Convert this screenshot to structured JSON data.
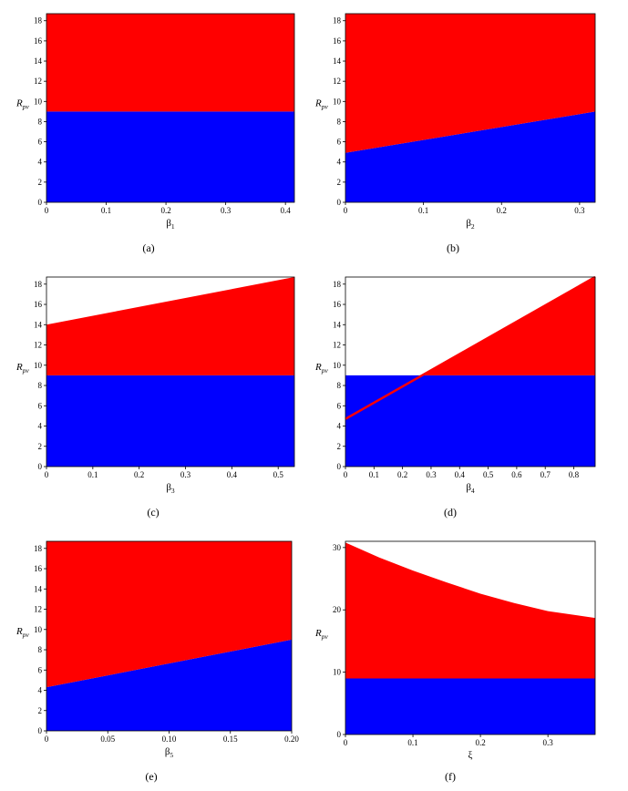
{
  "chart_data": [
    {
      "type": "area",
      "panel_label": "(a)",
      "xlabel": "β",
      "xlabel_sub": "1",
      "ylabel": "R",
      "ylabel_sub": "pv",
      "xlim": [
        0,
        0.415
      ],
      "ylim": [
        0,
        18.7
      ],
      "xticks": [
        0,
        0.1,
        0.2,
        0.3,
        0.4
      ],
      "xtick_labels": [
        "0",
        "0.1",
        "0.2",
        "0.3",
        "0.4"
      ],
      "yticks": [
        0,
        2,
        4,
        6,
        8,
        10,
        12,
        14,
        16,
        18
      ],
      "ytick_labels": [
        "0",
        "2",
        "4",
        "6",
        "8",
        "10",
        "12",
        "14",
        "16",
        "18"
      ],
      "red_top": [
        [
          0,
          18.7
        ],
        [
          0.415,
          18.7
        ]
      ],
      "blue_top": [
        [
          0,
          9.0
        ],
        [
          0.415,
          9.0
        ]
      ],
      "colors": {
        "upper": "#ff0000",
        "lower": "#0000ff"
      }
    },
    {
      "type": "area",
      "panel_label": "(b)",
      "xlabel": "β",
      "xlabel_sub": "2",
      "ylabel": "R",
      "ylabel_sub": "pv",
      "xlim": [
        0,
        0.32
      ],
      "ylim": [
        0,
        18.7
      ],
      "xticks": [
        0,
        0.1,
        0.2,
        0.3
      ],
      "xtick_labels": [
        "0",
        "0.1",
        "0.2",
        "0.3"
      ],
      "yticks": [
        0,
        2,
        4,
        6,
        8,
        10,
        12,
        14,
        16,
        18
      ],
      "ytick_labels": [
        "0",
        "2",
        "4",
        "6",
        "8",
        "10",
        "12",
        "14",
        "16",
        "18"
      ],
      "red_top": [
        [
          0,
          18.7
        ],
        [
          0.32,
          18.7
        ]
      ],
      "blue_top": [
        [
          0,
          4.9
        ],
        [
          0.32,
          9.0
        ]
      ],
      "colors": {
        "upper": "#ff0000",
        "lower": "#0000ff"
      }
    },
    {
      "type": "area",
      "panel_label": "(c)",
      "xlabel": "β",
      "xlabel_sub": "3",
      "ylabel": "R",
      "ylabel_sub": "pv",
      "xlim": [
        0,
        0.535
      ],
      "ylim": [
        0,
        18.7
      ],
      "xticks": [
        0,
        0.1,
        0.2,
        0.3,
        0.4,
        0.5
      ],
      "xtick_labels": [
        "0",
        "0.1",
        "0.2",
        "0.3",
        "0.4",
        "0.5"
      ],
      "yticks": [
        0,
        2,
        4,
        6,
        8,
        10,
        12,
        14,
        16,
        18
      ],
      "ytick_labels": [
        "0",
        "2",
        "4",
        "6",
        "8",
        "10",
        "12",
        "14",
        "16",
        "18"
      ],
      "red_top": [
        [
          0,
          14.0
        ],
        [
          0.535,
          18.7
        ]
      ],
      "blue_top": [
        [
          0,
          9.0
        ],
        [
          0.535,
          9.0
        ]
      ],
      "colors": {
        "upper": "#ff0000",
        "lower": "#0000ff"
      }
    },
    {
      "type": "area",
      "panel_label": "(d)",
      "xlabel": "β",
      "xlabel_sub": "4",
      "ylabel": "R",
      "ylabel_sub": "pv",
      "xlim": [
        0,
        0.875
      ],
      "ylim": [
        0,
        18.7
      ],
      "xticks": [
        0,
        0.1,
        0.2,
        0.3,
        0.4,
        0.5,
        0.6,
        0.7,
        0.8
      ],
      "xtick_labels": [
        "0",
        "0.1",
        "0.2",
        "0.3",
        "0.4",
        "0.5",
        "0.6",
        "0.7",
        "0.8"
      ],
      "yticks": [
        0,
        2,
        4,
        6,
        8,
        10,
        12,
        14,
        16,
        18
      ],
      "ytick_labels": [
        "0",
        "2",
        "4",
        "6",
        "8",
        "10",
        "12",
        "14",
        "16",
        "18"
      ],
      "red_line": [
        [
          0,
          4.7
        ],
        [
          0.875,
          18.7
        ]
      ],
      "blue_top": [
        [
          0,
          9.0
        ],
        [
          0.875,
          9.0
        ]
      ],
      "colors": {
        "upper": "#ff0000",
        "lower": "#0000ff"
      }
    },
    {
      "type": "area",
      "panel_label": "(e)",
      "xlabel": "β",
      "xlabel_sub": "5",
      "ylabel": "R",
      "ylabel_sub": "pv",
      "xlim": [
        0,
        0.2
      ],
      "ylim": [
        0,
        18.7
      ],
      "xticks": [
        0,
        0.05,
        0.1,
        0.15,
        0.2
      ],
      "xtick_labels": [
        "0",
        "0.05",
        "0.10",
        "0.15",
        "0.20"
      ],
      "yticks": [
        0,
        2,
        4,
        6,
        8,
        10,
        12,
        14,
        16,
        18
      ],
      "ytick_labels": [
        "0",
        "2",
        "4",
        "6",
        "8",
        "10",
        "12",
        "14",
        "16",
        "18"
      ],
      "red_top": [
        [
          0,
          18.7
        ],
        [
          0.2,
          18.7
        ]
      ],
      "blue_top": [
        [
          0,
          4.3
        ],
        [
          0.2,
          9.0
        ]
      ],
      "colors": {
        "upper": "#ff0000",
        "lower": "#0000ff"
      }
    },
    {
      "type": "area",
      "panel_label": "(f)",
      "xlabel": "ξ",
      "xlabel_sub": "",
      "ylabel": "R",
      "ylabel_sub": "pv",
      "xlim": [
        0,
        0.37
      ],
      "ylim": [
        0,
        31
      ],
      "xticks": [
        0,
        0.1,
        0.2,
        0.3
      ],
      "xtick_labels": [
        "0",
        "0.1",
        "0.2",
        "0.3"
      ],
      "yticks": [
        0,
        10,
        20,
        30
      ],
      "ytick_labels": [
        "0",
        "10",
        "20",
        "30"
      ],
      "red_top": [
        [
          0,
          30.8
        ],
        [
          0.05,
          28.4
        ],
        [
          0.1,
          26.3
        ],
        [
          0.15,
          24.4
        ],
        [
          0.2,
          22.6
        ],
        [
          0.25,
          21.1
        ],
        [
          0.3,
          19.8
        ],
        [
          0.37,
          18.7
        ]
      ],
      "blue_top": [
        [
          0,
          9.0
        ],
        [
          0.37,
          9.0
        ]
      ],
      "colors": {
        "upper": "#ff0000",
        "lower": "#0000ff"
      }
    }
  ]
}
